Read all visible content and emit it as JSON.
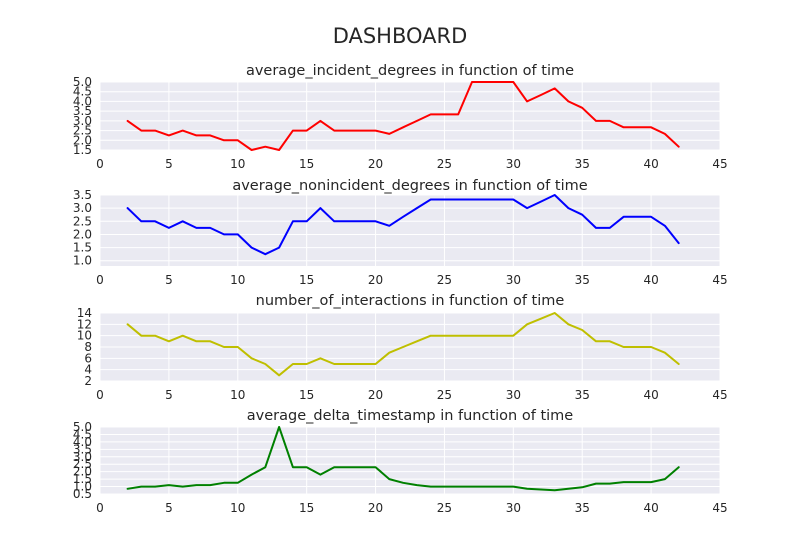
{
  "suptitle": "DASHBOARD",
  "chart_data": [
    {
      "type": "line",
      "title": "average_incident_degrees in function of time",
      "xlim": [
        0,
        45
      ],
      "ylim": [
        1.5,
        5.0
      ],
      "xticks": [
        0,
        5,
        10,
        15,
        20,
        25,
        30,
        35,
        40,
        45
      ],
      "yticks": [
        1.5,
        2.0,
        2.5,
        3.0,
        3.5,
        4.0,
        4.5,
        5.0
      ],
      "grid": true,
      "color": "#ff0000",
      "series": [
        {
          "x": [
            2,
            3,
            4,
            5,
            6,
            7,
            8,
            9,
            10,
            11,
            12,
            13,
            14,
            15,
            16,
            17,
            18,
            19,
            20,
            21,
            22,
            23,
            24,
            25,
            26,
            27,
            28,
            29,
            30,
            31,
            32,
            33,
            34,
            35,
            36,
            37,
            38,
            39,
            40,
            41,
            42
          ],
          "values": [
            3.0,
            2.5,
            2.5,
            2.25,
            2.5,
            2.25,
            2.25,
            2.0,
            2.0,
            1.5,
            1.67,
            1.5,
            2.5,
            2.5,
            3.0,
            2.5,
            2.5,
            2.5,
            2.5,
            2.33,
            2.67,
            3.0,
            3.33,
            3.33,
            3.33,
            5.0,
            5.0,
            5.0,
            5.0,
            4.0,
            4.33,
            4.67,
            4.0,
            3.67,
            3.0,
            3.0,
            2.67,
            2.67,
            2.67,
            2.33,
            1.67
          ]
        }
      ]
    },
    {
      "type": "line",
      "title": "average_nonincident_degrees in function of time",
      "xlim": [
        0,
        45
      ],
      "ylim": [
        0.8,
        3.5
      ],
      "xticks": [
        0,
        5,
        10,
        15,
        20,
        25,
        30,
        35,
        40,
        45
      ],
      "yticks": [
        1.0,
        1.5,
        2.0,
        2.5,
        3.0,
        3.5
      ],
      "grid": true,
      "color": "#0000ff",
      "series": [
        {
          "x": [
            2,
            3,
            4,
            5,
            6,
            7,
            8,
            9,
            10,
            11,
            12,
            13,
            14,
            15,
            16,
            17,
            18,
            19,
            20,
            21,
            22,
            23,
            24,
            25,
            26,
            27,
            28,
            29,
            30,
            31,
            32,
            33,
            34,
            35,
            36,
            37,
            38,
            39,
            40,
            41,
            42
          ],
          "values": [
            3.0,
            2.5,
            2.5,
            2.25,
            2.5,
            2.25,
            2.25,
            2.0,
            2.0,
            1.5,
            1.25,
            1.5,
            2.5,
            2.5,
            3.0,
            2.5,
            2.5,
            2.5,
            2.5,
            2.33,
            2.67,
            3.0,
            3.33,
            3.33,
            3.33,
            3.33,
            3.33,
            3.33,
            3.33,
            3.0,
            3.25,
            3.5,
            3.0,
            2.75,
            2.25,
            2.25,
            2.67,
            2.67,
            2.67,
            2.33,
            1.67
          ]
        }
      ]
    },
    {
      "type": "line",
      "title": "number_of_interactions in function of time",
      "xlim": [
        0,
        45
      ],
      "ylim": [
        2,
        14
      ],
      "xticks": [
        0,
        5,
        10,
        15,
        20,
        25,
        30,
        35,
        40,
        45
      ],
      "yticks": [
        2,
        4,
        6,
        8,
        10,
        12,
        14
      ],
      "grid": true,
      "color": "#bfbf00",
      "series": [
        {
          "x": [
            2,
            3,
            4,
            5,
            6,
            7,
            8,
            9,
            10,
            11,
            12,
            13,
            14,
            15,
            16,
            17,
            18,
            19,
            20,
            21,
            22,
            23,
            24,
            25,
            26,
            27,
            28,
            29,
            30,
            31,
            32,
            33,
            34,
            35,
            36,
            37,
            38,
            39,
            40,
            41,
            42
          ],
          "values": [
            12,
            10,
            10,
            9,
            10,
            9,
            9,
            8,
            8,
            6,
            5,
            3,
            5,
            5,
            6,
            5,
            5,
            5,
            5,
            7,
            8,
            9,
            10,
            10,
            10,
            10,
            10,
            10,
            10,
            12,
            13,
            14,
            12,
            11,
            9,
            9,
            8,
            8,
            8,
            7,
            5
          ]
        }
      ]
    },
    {
      "type": "line",
      "title": "average_delta_timestamp in function of time",
      "xlim": [
        0,
        45
      ],
      "ylim": [
        0.5,
        5.0
      ],
      "xticks": [
        0,
        5,
        10,
        15,
        20,
        25,
        30,
        35,
        40,
        45
      ],
      "yticks": [
        0.5,
        1.0,
        1.5,
        2.0,
        2.5,
        3.0,
        3.5,
        4.0,
        4.5,
        5.0
      ],
      "grid": true,
      "color": "#008000",
      "series": [
        {
          "x": [
            2,
            3,
            4,
            5,
            6,
            7,
            8,
            9,
            10,
            11,
            12,
            13,
            14,
            15,
            16,
            17,
            18,
            19,
            20,
            21,
            22,
            23,
            24,
            25,
            26,
            27,
            28,
            29,
            30,
            31,
            32,
            33,
            34,
            35,
            36,
            37,
            38,
            39,
            40,
            41,
            42
          ],
          "values": [
            0.85,
            1.0,
            1.0,
            1.1,
            1.0,
            1.1,
            1.1,
            1.25,
            1.25,
            1.8,
            2.3,
            5.0,
            2.3,
            2.3,
            1.8,
            2.3,
            2.3,
            2.3,
            2.3,
            1.5,
            1.25,
            1.1,
            1.0,
            1.0,
            1.0,
            1.0,
            1.0,
            1.0,
            1.0,
            0.85,
            0.8,
            0.75,
            0.85,
            0.95,
            1.2,
            1.2,
            1.3,
            1.3,
            1.3,
            1.5,
            2.3
          ]
        }
      ]
    }
  ]
}
